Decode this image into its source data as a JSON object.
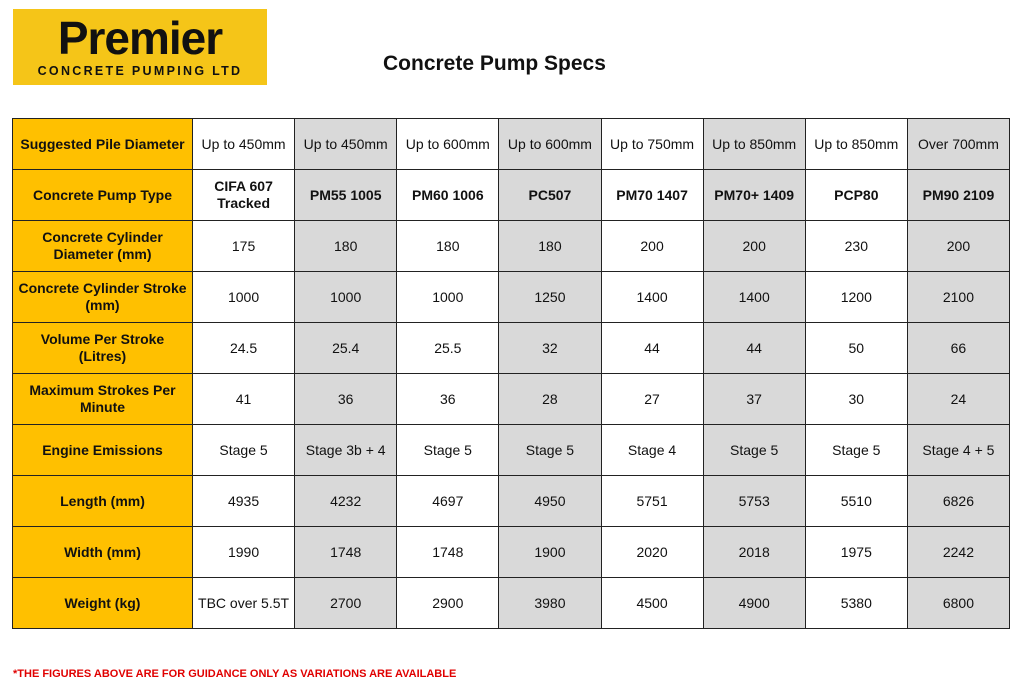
{
  "logo": {
    "word": "Premier",
    "sub": "CONCRETE PUMPING LTD"
  },
  "title": "Concrete Pump Specs",
  "table": {
    "rows": [
      {
        "label": "Suggested Pile Diameter",
        "values": [
          "Up to 450mm",
          "Up to 450mm",
          "Up to 600mm",
          "Up to 600mm",
          "Up to 750mm",
          "Up to 850mm",
          "Up to 850mm",
          "Over 700mm"
        ]
      },
      {
        "label": "Concrete Pump Type",
        "values": [
          "CIFA 607 Tracked",
          "PM55 1005",
          "PM60 1006",
          "PC507",
          "PM70 1407",
          "PM70+ 1409",
          "PCP80",
          "PM90 2109"
        ]
      },
      {
        "label": "Concrete Cylinder Diameter (mm)",
        "values": [
          "175",
          "180",
          "180",
          "180",
          "200",
          "200",
          "230",
          "200"
        ]
      },
      {
        "label": "Concrete Cylinder Stroke (mm)",
        "values": [
          "1000",
          "1000",
          "1000",
          "1250",
          "1400",
          "1400",
          "1200",
          "2100"
        ]
      },
      {
        "label": "Volume Per Stroke (Litres)",
        "values": [
          "24.5",
          "25.4",
          "25.5",
          "32",
          "44",
          "44",
          "50",
          "66"
        ]
      },
      {
        "label": "Maximum Strokes Per Minute",
        "values": [
          "41",
          "36",
          "36",
          "28",
          "27",
          "37",
          "30",
          "24"
        ]
      },
      {
        "label": "Engine Emissions",
        "values": [
          "Stage 5",
          "Stage 3b + 4",
          "Stage 5",
          "Stage 5",
          "Stage 4",
          "Stage 5",
          "Stage 5",
          "Stage 4 + 5"
        ]
      },
      {
        "label": "Length (mm)",
        "values": [
          "4935",
          "4232",
          "4697",
          "4950",
          "5751",
          "5753",
          "5510",
          "6826"
        ]
      },
      {
        "label": "Width (mm)",
        "values": [
          "1990",
          "1748",
          "1748",
          "1900",
          "2020",
          "2018",
          "1975",
          "2242"
        ]
      },
      {
        "label": "Weight (kg)",
        "values": [
          "TBC over 5.5T",
          "2700",
          "2900",
          "3980",
          "4500",
          "4900",
          "5380",
          "6800"
        ]
      }
    ]
  },
  "footnote": "*THE FIGURES ABOVE ARE FOR GUIDANCE ONLY AS VARIATIONS ARE AVAILABLE",
  "colors": {
    "logo_bg": "#f5c518",
    "header_bg": "#ffc000",
    "alt_bg": "#d9d9d9",
    "footnote": "#e00000"
  }
}
